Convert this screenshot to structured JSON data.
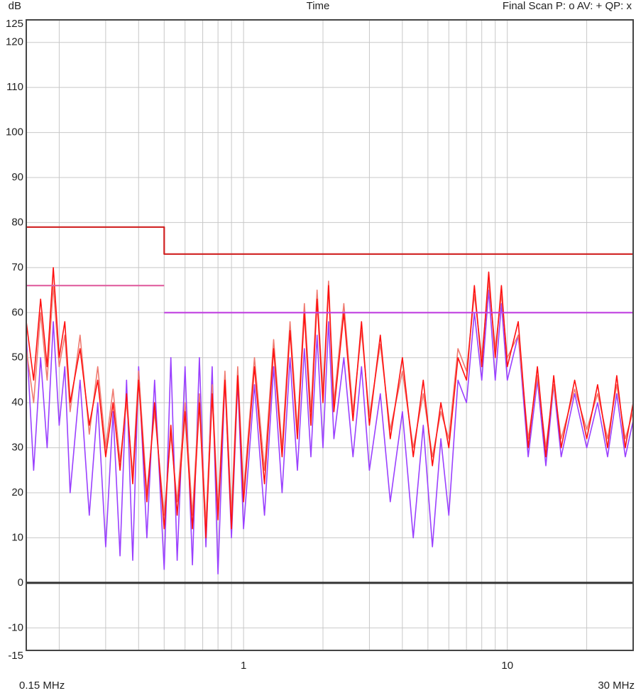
{
  "chart_data": {
    "type": "line",
    "title": "Time",
    "ylabel": "dB",
    "top_right": "Final Scan P: o  AV: +  QP: x",
    "xscale": "log",
    "xlim": [
      0.15,
      30
    ],
    "ylim": [
      -15,
      125
    ],
    "xticks": [
      {
        "value": 0.15,
        "label": "0.15 MHz"
      },
      1,
      10,
      {
        "value": 30,
        "label": "30 MHz"
      }
    ],
    "xminor": [
      0.2,
      0.3,
      0.4,
      0.5,
      0.6,
      0.7,
      0.8,
      0.9,
      2,
      3,
      4,
      5,
      6,
      7,
      8,
      9,
      20
    ],
    "yticks": [
      -15,
      -10,
      0,
      10,
      20,
      30,
      40,
      50,
      60,
      70,
      80,
      90,
      100,
      110,
      120,
      125
    ],
    "grid": true,
    "baseline": 0,
    "x": [
      0.15,
      0.16,
      0.17,
      0.18,
      0.19,
      0.2,
      0.21,
      0.22,
      0.24,
      0.26,
      0.28,
      0.3,
      0.32,
      0.34,
      0.36,
      0.38,
      0.4,
      0.43,
      0.46,
      0.5,
      0.53,
      0.56,
      0.6,
      0.64,
      0.68,
      0.72,
      0.76,
      0.8,
      0.85,
      0.9,
      0.95,
      1.0,
      1.1,
      1.2,
      1.3,
      1.4,
      1.5,
      1.6,
      1.7,
      1.8,
      1.9,
      2.0,
      2.1,
      2.2,
      2.4,
      2.6,
      2.8,
      3.0,
      3.3,
      3.6,
      4.0,
      4.4,
      4.8,
      5.2,
      5.6,
      6.0,
      6.5,
      7.0,
      7.5,
      8.0,
      8.5,
      9.0,
      9.5,
      10,
      11,
      12,
      13,
      14,
      15,
      16,
      18,
      20,
      22,
      24,
      26,
      28,
      30
    ],
    "series": [
      {
        "color": "#9a40ff",
        "values": [
          55,
          25,
          50,
          30,
          58,
          35,
          48,
          20,
          45,
          15,
          40,
          8,
          38,
          6,
          45,
          5,
          48,
          10,
          45,
          3,
          50,
          5,
          48,
          4,
          50,
          8,
          48,
          2,
          46,
          10,
          45,
          12,
          44,
          15,
          48,
          20,
          50,
          25,
          52,
          28,
          55,
          30,
          58,
          32,
          50,
          28,
          48,
          25,
          42,
          18,
          38,
          10,
          35,
          8,
          32,
          15,
          45,
          40,
          60,
          45,
          65,
          45,
          62,
          45,
          55,
          28,
          45,
          26,
          44,
          28,
          42,
          30,
          40,
          28,
          42,
          28,
          36
        ]
      },
      {
        "color": "#f07a70",
        "values": [
          52,
          40,
          60,
          45,
          66,
          48,
          55,
          38,
          55,
          33,
          48,
          30,
          43,
          27,
          40,
          24,
          47,
          20,
          38,
          15,
          33,
          18,
          40,
          15,
          42,
          13,
          44,
          16,
          47,
          15,
          48,
          20,
          50,
          25,
          54,
          30,
          58,
          34,
          62,
          38,
          65,
          42,
          67,
          40,
          62,
          38,
          56,
          37,
          53,
          34,
          47,
          30,
          42,
          28,
          38,
          32,
          52,
          47,
          64,
          50,
          67,
          52,
          64,
          50,
          55,
          32,
          46,
          30,
          44,
          32,
          43,
          34,
          42,
          32,
          44,
          32,
          38
        ]
      },
      {
        "color": "#ff1010",
        "values": [
          58,
          45,
          63,
          48,
          70,
          50,
          58,
          40,
          52,
          35,
          45,
          28,
          40,
          25,
          42,
          22,
          45,
          18,
          40,
          12,
          35,
          15,
          38,
          12,
          40,
          10,
          42,
          14,
          45,
          12,
          46,
          18,
          48,
          22,
          52,
          28,
          56,
          32,
          60,
          35,
          63,
          40,
          66,
          38,
          60,
          36,
          58,
          35,
          55,
          32,
          50,
          28,
          45,
          26,
          40,
          30,
          50,
          45,
          66,
          48,
          69,
          50,
          66,
          48,
          58,
          30,
          48,
          28,
          46,
          30,
          45,
          32,
          44,
          30,
          46,
          30,
          40
        ]
      }
    ],
    "limits": [
      {
        "color": "#d02020",
        "x": [
          0.15,
          0.5,
          0.5,
          30
        ],
        "values": [
          79,
          79,
          73,
          73
        ]
      },
      {
        "color": "#e060a0",
        "x": [
          0.15,
          0.5
        ],
        "values": [
          66,
          66
        ]
      },
      {
        "color": "#c040e0",
        "x": [
          0.5,
          30
        ],
        "values": [
          60,
          60
        ]
      }
    ]
  }
}
